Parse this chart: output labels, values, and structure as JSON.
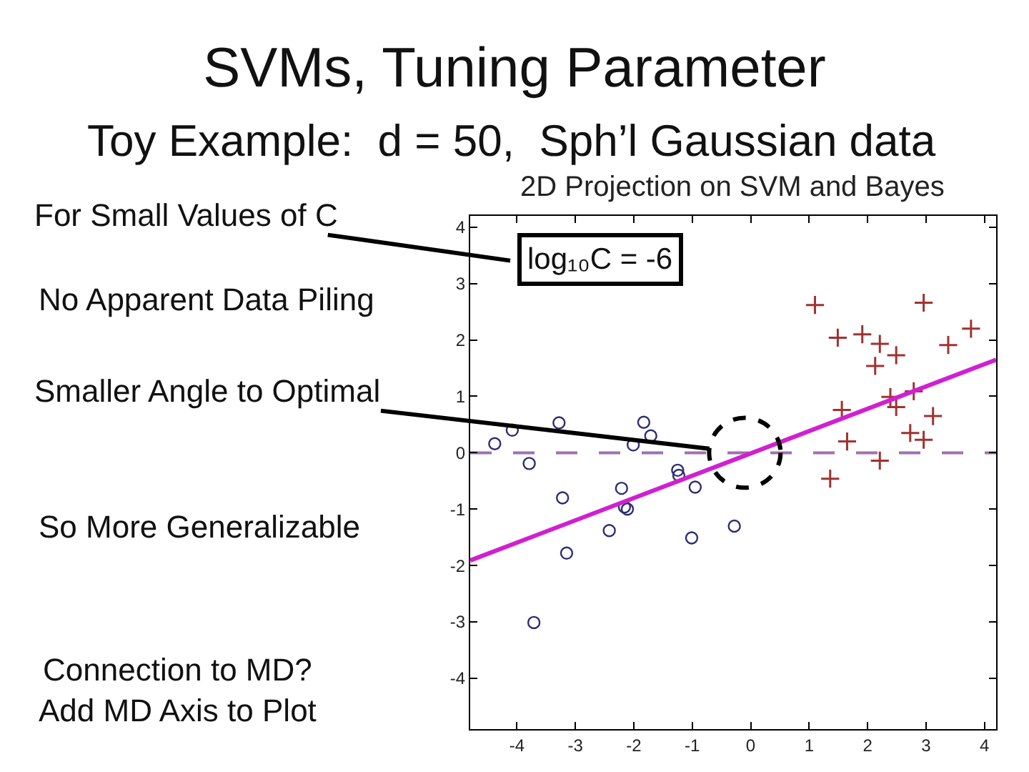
{
  "chart_data": {
    "type": "scatter",
    "title": "SVMs, Tuning Parameter",
    "subtitle": "Toy Example:  d = 50,  Sph’l Gaussian data",
    "xlim": [
      -4.8,
      4.2
    ],
    "xticks": [
      -4,
      -3,
      -2,
      -1,
      0,
      1,
      2,
      3,
      4
    ],
    "ylim": [
      -4.9,
      4.2
    ],
    "yticks": [
      -4,
      -3,
      -2,
      -1,
      0,
      1,
      2,
      3,
      4
    ],
    "series": [
      {
        "marker": "circle",
        "color": "#2e2e72",
        "x": [
          -4.38,
          -4.08,
          -3.79,
          -3.71,
          -3.28,
          -3.22,
          -3.15,
          -2.42,
          -2.21,
          -2.16,
          -2.11,
          -2.01,
          -1.83,
          -1.71,
          -1.25,
          -1.23,
          -1.01,
          -0.95,
          -0.28
        ],
        "values": [
          0.16,
          0.4,
          -0.19,
          -3.01,
          0.53,
          -0.8,
          -1.78,
          -1.38,
          -0.63,
          -0.96,
          -1.0,
          0.14,
          0.54,
          0.3,
          -0.31,
          -0.4,
          -1.51,
          -0.61,
          -1.3
        ]
      },
      {
        "marker": "cross",
        "color": "#a03232",
        "x": [
          1.1,
          2.96,
          1.49,
          1.91,
          2.21,
          2.49,
          2.13,
          3.38,
          3.77,
          1.56,
          2.39,
          2.49,
          2.79,
          3.12,
          1.65,
          2.73,
          2.96,
          2.21,
          1.36
        ],
        "values": [
          2.62,
          2.66,
          2.04,
          2.1,
          1.93,
          1.73,
          1.54,
          1.91,
          2.2,
          0.76,
          0.99,
          0.81,
          1.09,
          0.65,
          0.2,
          0.35,
          0.23,
          -0.14,
          -0.46
        ]
      },
      {
        "type": "line",
        "marker": "none",
        "color": "#d020d0",
        "x": [
          -4.8,
          4.2
        ],
        "values": [
          -1.91,
          1.65
        ]
      }
    ],
    "ref_lines": [
      {
        "axis": "y",
        "value": 0,
        "color": "#a070b0",
        "line_style": "dashed"
      }
    ],
    "annotations": [
      "2D Projection on SVM and Bayes",
      "log₁₀C = -6",
      "For Small Values of C",
      "No Apparent Data Piling",
      {
        "text": "Smaller Angle to Optimal",
        "x": -0.1,
        "y": 0
      },
      "So More Generalizable",
      "Connection to MD?\nAdd MD Axis to Plot"
    ]
  }
}
